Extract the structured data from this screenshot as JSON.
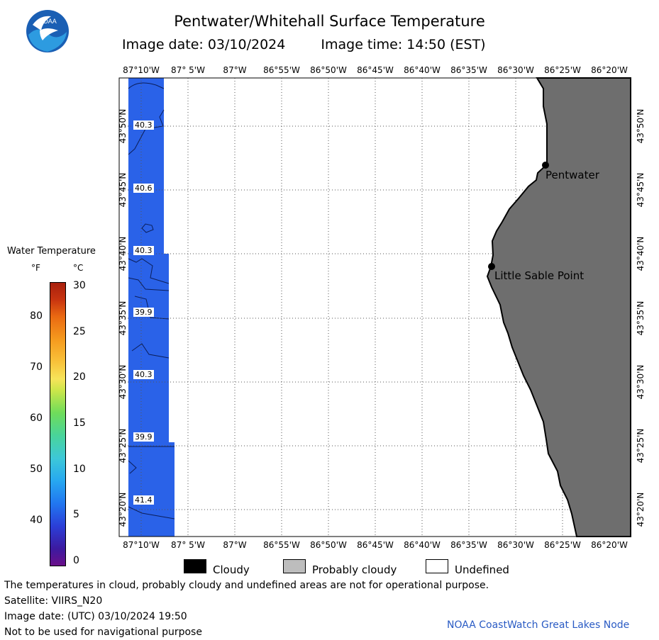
{
  "header": {
    "title": "Pentwater/Whitehall Surface Temperature",
    "image_date": "Image date: 03/10/2024",
    "image_time": "Image time: 14:50 (EST)"
  },
  "logo": {
    "text": "NOAA",
    "icon": "noaa-logo-icon"
  },
  "legend": {
    "title": "Water Temperature",
    "f_unit": "°F",
    "c_unit": "°C",
    "fahrenheit_ticks": [
      "80",
      "70",
      "60",
      "50",
      "40"
    ],
    "celsius_ticks": [
      "30",
      "25",
      "20",
      "15",
      "10",
      "5",
      "0"
    ],
    "range_f": [
      32,
      86
    ],
    "range_c": [
      0,
      30
    ]
  },
  "map": {
    "lon_labels": [
      "87°10'W",
      "87° 5'W",
      "87°W",
      "86°55'W",
      "86°50'W",
      "86°45'W",
      "86°40'W",
      "86°35'W",
      "86°30'W",
      "86°25'W",
      "86°20'W"
    ],
    "lat_labels": [
      "43°50'N",
      "43°45'N",
      "43°40'N",
      "43°35'N",
      "43°30'N",
      "43°25'N",
      "43°20'N"
    ],
    "places": [
      {
        "name": "Pentwater"
      },
      {
        "name": "Little Sable Point"
      }
    ],
    "temperature_labels": [
      "40.3",
      "40.6",
      "40.3",
      "39.9",
      "40.3",
      "39.9",
      "41.4"
    ],
    "colors": {
      "land": "#6e6e6e",
      "water": "#2a62e8",
      "grid": "#555555"
    }
  },
  "cloud_key": {
    "cloudy": "Cloudy",
    "probably_cloudy": "Probably cloudy",
    "undefined": "Undefined",
    "colors": {
      "cloudy": "#000000",
      "probably_cloudy": "#bdbdbd",
      "undefined": "#ffffff"
    }
  },
  "footer": {
    "disclaimer": "The temperatures in cloud, probably cloudy and undefined areas are not for operational purpose.",
    "satellite": "Satellite: VIIRS_N20",
    "utc_date": "Image date: (UTC) 03/10/2024  19:50",
    "navigation": "Not to be used for navigational purpose",
    "credit": "NOAA CoastWatch Great Lakes Node"
  }
}
